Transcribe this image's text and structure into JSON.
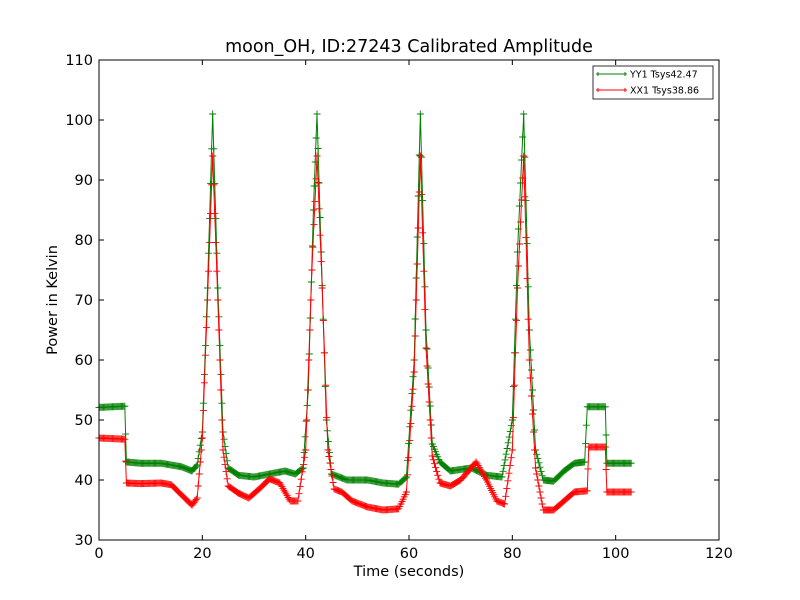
{
  "chart_data": {
    "type": "line",
    "title": "moon_OH, ID:27243 Calibrated Amplitude",
    "xlabel": "Time (seconds)",
    "ylabel": "Power in Kelvin",
    "xlim": [
      0,
      120
    ],
    "ylim": [
      30,
      110
    ],
    "xticks": [
      "0",
      "20",
      "40",
      "60",
      "80",
      "100",
      "120"
    ],
    "yticks": [
      "30",
      "40",
      "50",
      "60",
      "70",
      "80",
      "90",
      "100",
      "110"
    ],
    "grid": false,
    "legend_position": "top-right",
    "marker": "+",
    "series": [
      {
        "name": "YY1 Tsys42.47",
        "color": "#008000",
        "points": [
          [
            0,
            52.1
          ],
          [
            5,
            52.3
          ],
          [
            5.3,
            43
          ],
          [
            8,
            42.8
          ],
          [
            12,
            42.8
          ],
          [
            16,
            42.2
          ],
          [
            18,
            41.5
          ],
          [
            19,
            42.5
          ],
          [
            20,
            48
          ],
          [
            21,
            72
          ],
          [
            22,
            101
          ],
          [
            23,
            72
          ],
          [
            24,
            48
          ],
          [
            25,
            42
          ],
          [
            27,
            40.8
          ],
          [
            30,
            40.5
          ],
          [
            33,
            41
          ],
          [
            36,
            41.5
          ],
          [
            38,
            41
          ],
          [
            39.5,
            42
          ],
          [
            40.5,
            55
          ],
          [
            41.5,
            85
          ],
          [
            42.2,
            101
          ],
          [
            43,
            78
          ],
          [
            44,
            50
          ],
          [
            45,
            41
          ],
          [
            48,
            40
          ],
          [
            52,
            40
          ],
          [
            55,
            39.5
          ],
          [
            58,
            39.3
          ],
          [
            59.5,
            40.5
          ],
          [
            61,
            60
          ],
          [
            62.2,
            101
          ],
          [
            63.3,
            65
          ],
          [
            64.5,
            46
          ],
          [
            66,
            43
          ],
          [
            68,
            41.5
          ],
          [
            72,
            42
          ],
          [
            75,
            40.8
          ],
          [
            78,
            40.5
          ],
          [
            80,
            50
          ],
          [
            81,
            78
          ],
          [
            82.2,
            101
          ],
          [
            83.3,
            65
          ],
          [
            84.5,
            45
          ],
          [
            86,
            40
          ],
          [
            88,
            39.8
          ],
          [
            90,
            41.5
          ],
          [
            92,
            42.8
          ],
          [
            94,
            43
          ],
          [
            94.5,
            52.2
          ],
          [
            98,
            52.2
          ],
          [
            98.3,
            42.8
          ],
          [
            103,
            42.8
          ]
        ]
      },
      {
        "name": "XX1 Tsys38.86",
        "color": "#ff0000",
        "points": [
          [
            0,
            47
          ],
          [
            5,
            46.8
          ],
          [
            5.3,
            39.5
          ],
          [
            8,
            39.4
          ],
          [
            12,
            39.5
          ],
          [
            14,
            39.2
          ],
          [
            16,
            37.5
          ],
          [
            18,
            35.8
          ],
          [
            19,
            37
          ],
          [
            20,
            47
          ],
          [
            21,
            70
          ],
          [
            22,
            94
          ],
          [
            23,
            70
          ],
          [
            24,
            45
          ],
          [
            25,
            39
          ],
          [
            27,
            37.8
          ],
          [
            29,
            37
          ],
          [
            31,
            38.5
          ],
          [
            33,
            40.2
          ],
          [
            35,
            39.5
          ],
          [
            37,
            36.5
          ],
          [
            38.5,
            36.5
          ],
          [
            40,
            45
          ],
          [
            41.2,
            75
          ],
          [
            42.2,
            94
          ],
          [
            43.2,
            72
          ],
          [
            44.3,
            45
          ],
          [
            45.5,
            38.5
          ],
          [
            47,
            38
          ],
          [
            49,
            36.5
          ],
          [
            52,
            35.5
          ],
          [
            55,
            35
          ],
          [
            58,
            35.2
          ],
          [
            59.5,
            38
          ],
          [
            61,
            58
          ],
          [
            62.2,
            94
          ],
          [
            63.3,
            62
          ],
          [
            64.5,
            44
          ],
          [
            66,
            39.5
          ],
          [
            68,
            39
          ],
          [
            70,
            40
          ],
          [
            73,
            43
          ],
          [
            75,
            40
          ],
          [
            77,
            36.5
          ],
          [
            78.5,
            36
          ],
          [
            80,
            45
          ],
          [
            81,
            72
          ],
          [
            82.2,
            94
          ],
          [
            83.3,
            60
          ],
          [
            84.5,
            42
          ],
          [
            86,
            35
          ],
          [
            88,
            35
          ],
          [
            90,
            36.5
          ],
          [
            92,
            38
          ],
          [
            94.5,
            38.2
          ],
          [
            94.8,
            45.5
          ],
          [
            98,
            45.5
          ],
          [
            98.3,
            38
          ],
          [
            103,
            38
          ]
        ]
      }
    ]
  }
}
